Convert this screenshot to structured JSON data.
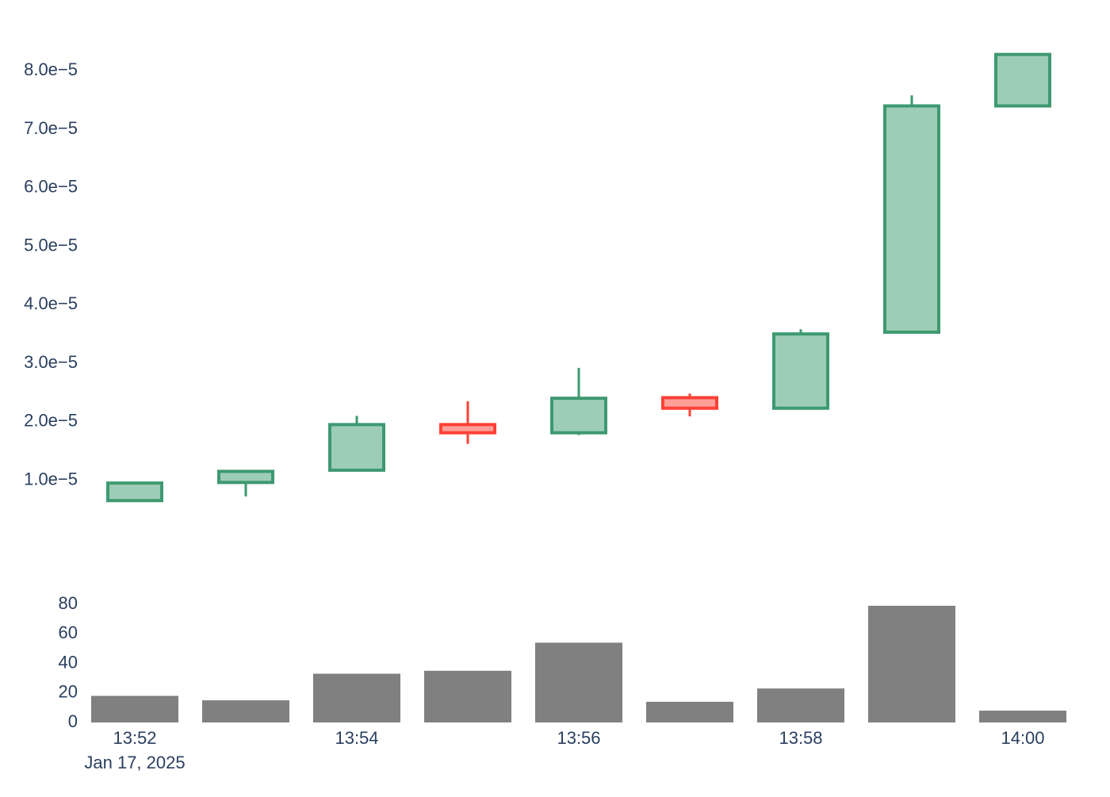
{
  "chart_data": [
    {
      "type": "candlestick",
      "x": [
        "13:52",
        "13:53",
        "13:54",
        "13:55",
        "13:56",
        "13:57",
        "13:58",
        "13:59",
        "14:00"
      ],
      "open": [
        6.5e-06,
        9.6e-06,
        1.17e-05,
        1.95e-05,
        1.81e-05,
        2.41e-05,
        2.23e-05,
        3.53e-05,
        7.4e-05
      ],
      "high": [
        9.7e-06,
        1.17e-05,
        2.1e-05,
        2.35e-05,
        2.92e-05,
        2.48e-05,
        3.58e-05,
        7.58e-05,
        8.28e-05
      ],
      "low": [
        6.5e-06,
        7.2e-06,
        1.17e-05,
        1.62e-05,
        1.77e-05,
        2.09e-05,
        2.23e-05,
        3.53e-05,
        7.4e-05
      ],
      "close": [
        9.5e-06,
        1.15e-05,
        1.95e-05,
        1.81e-05,
        2.4e-05,
        2.23e-05,
        3.5e-05,
        7.4e-05,
        8.28e-05
      ],
      "yticks": [
        "1.0e−5",
        "2.0e−5",
        "3.0e−5",
        "4.0e−5",
        "5.0e−5",
        "6.0e−5",
        "7.0e−5",
        "8.0e−5"
      ],
      "ytick_values": [
        1e-05,
        2e-05,
        3e-05,
        4e-05,
        5e-05,
        6e-05,
        7e-05,
        8e-05
      ],
      "ylim": [
        2.6e-06,
        8.94e-05
      ],
      "increasing_color": "#3d9970",
      "increasing_fill": "#9ecdb7",
      "decreasing_color": "#ff4136",
      "decreasing_fill": "#ff9f9a"
    },
    {
      "type": "bar",
      "categories": [
        "13:52",
        "13:53",
        "13:54",
        "13:55",
        "13:56",
        "13:57",
        "13:58",
        "13:59",
        "14:00"
      ],
      "values": [
        18,
        15,
        33,
        35,
        54,
        14,
        23,
        79,
        8
      ],
      "yticks": [
        "0",
        "20",
        "40",
        "60",
        "80"
      ],
      "ytick_values": [
        0,
        20,
        40,
        60,
        80
      ],
      "ylim": [
        0,
        80
      ],
      "bar_color": "#808080"
    }
  ],
  "xaxis": {
    "ticks": [
      "13:52",
      "13:54",
      "13:56",
      "13:58",
      "14:00"
    ],
    "tick_indices": [
      0,
      2,
      4,
      6,
      8
    ],
    "date_label": "Jan 17, 2025"
  }
}
